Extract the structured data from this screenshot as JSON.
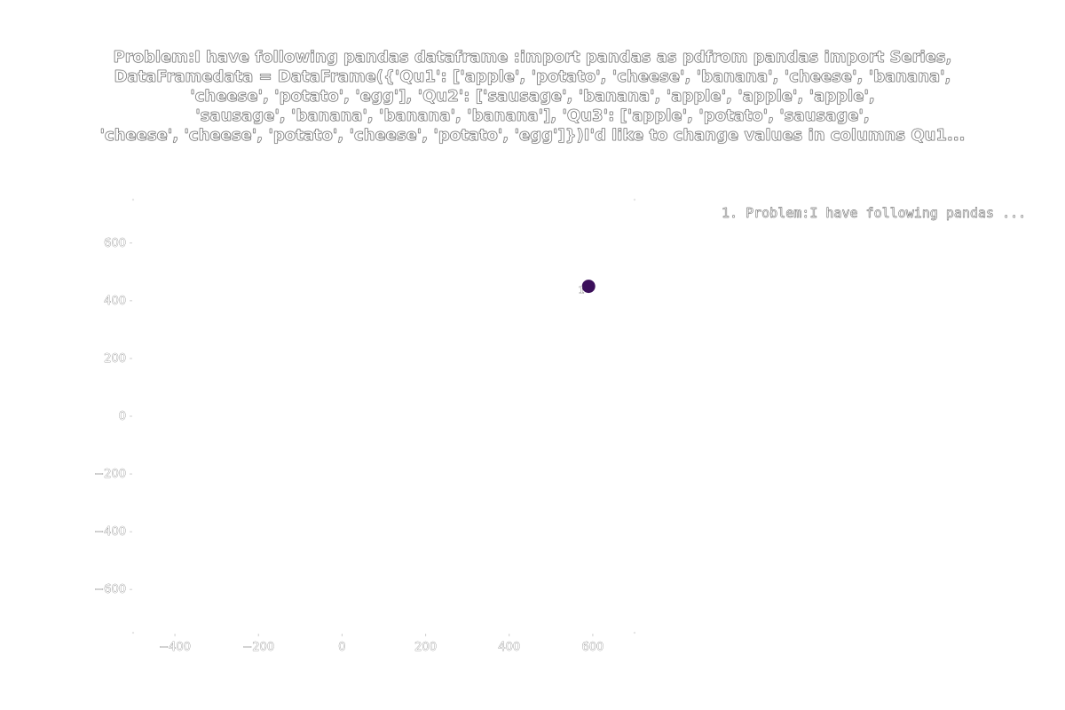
{
  "chart_data": {
    "type": "scatter",
    "title": "Problem:I have following pandas dataframe :import pandas as pdfrom pandas import Series,\nDataFramedata = DataFrame({'Qu1': ['apple', 'potato', 'cheese', 'banana', 'cheese', 'banana',\n'cheese', 'potato', 'egg'],               'Qu2': ['sausage', 'banana', 'apple', 'apple', 'apple',\n'sausage', 'banana', 'banana', 'banana'],               'Qu3': ['apple', 'potato', 'sausage',\n'cheese', 'cheese', 'potato', 'cheese', 'potato', 'egg']})I'd like to change values in columns Qu1...",
    "xlim": [
      -500,
      700
    ],
    "ylim": [
      -750,
      750
    ],
    "x_ticks": [
      -400,
      -200,
      0,
      200,
      400,
      600
    ],
    "y_ticks": [
      600,
      400,
      200,
      0,
      -200,
      -400,
      -600
    ],
    "x_tick_labels": [
      "−400",
      "−200",
      "0",
      "200",
      "400",
      "600"
    ],
    "y_tick_labels": [
      "600",
      "400",
      "200",
      "0",
      "−200",
      "−400",
      "−600"
    ],
    "grid": false,
    "legend_position": "top-right",
    "points": [
      {
        "x": 590,
        "y": 450,
        "label": "1",
        "color": "#3b0f5a"
      }
    ],
    "legend": [
      "1. Problem:I have following pandas ..."
    ]
  }
}
